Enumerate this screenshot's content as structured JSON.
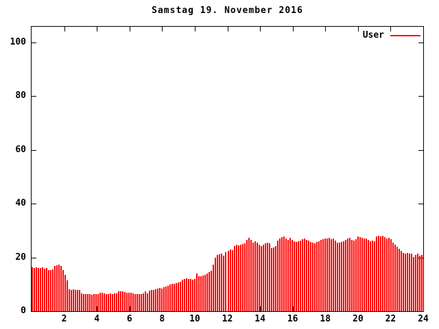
{
  "window": {
    "background": "#ffffff"
  },
  "chart_data": {
    "type": "bar",
    "title": "Samstag 19. November 2016",
    "legend": {
      "label": "User",
      "color": "#ff0000",
      "position": "top-right-inside"
    },
    "xlabel": "",
    "ylabel": "",
    "xlim": [
      0,
      24
    ],
    "ylim": [
      0,
      105.7
    ],
    "x_ticks": [
      2,
      4,
      6,
      8,
      10,
      12,
      14,
      16,
      18,
      20,
      22,
      24
    ],
    "y_ticks": [
      0,
      20,
      40,
      60,
      80,
      100
    ],
    "grid": false,
    "bar_color": "#ff0000",
    "axis_color": "#000000",
    "series": [
      {
        "name": "User",
        "color": "#ff0000",
        "x_start_hour": 0,
        "x_step_hours": 0.1263,
        "values": [
          16.3,
          16.1,
          16.4,
          16.1,
          16.0,
          16.2,
          15.9,
          16.1,
          15.4,
          15.2,
          15.6,
          16.9,
          17.2,
          17.3,
          16.8,
          15.2,
          13.6,
          11.4,
          8.2,
          8.0,
          8.1,
          7.9,
          8.0,
          7.8,
          6.6,
          6.4,
          6.5,
          6.3,
          6.4,
          6.2,
          6.3,
          6.3,
          6.5,
          6.9,
          6.8,
          6.6,
          6.5,
          6.4,
          6.6,
          6.5,
          6.7,
          6.6,
          7.3,
          7.5,
          7.4,
          7.2,
          7.0,
          7.0,
          6.8,
          6.6,
          6.5,
          6.5,
          6.4,
          6.5,
          6.6,
          7.3,
          6.6,
          7.6,
          7.8,
          8.0,
          8.1,
          8.4,
          8.6,
          8.5,
          8.8,
          9.2,
          9.4,
          10.0,
          10.2,
          10.1,
          10.4,
          10.6,
          11.0,
          11.8,
          12.0,
          12.3,
          12.1,
          12.0,
          11.6,
          12.0,
          13.9,
          12.9,
          13.1,
          13.3,
          13.6,
          14.1,
          14.6,
          15.1,
          17.4,
          19.9,
          20.8,
          21.2,
          21.5,
          20.6,
          21.8,
          22.3,
          23.0,
          22.8,
          24.3,
          24.6,
          24.4,
          24.7,
          24.9,
          25.3,
          26.6,
          27.3,
          26.5,
          25.6,
          25.9,
          25.4,
          24.6,
          24.2,
          24.8,
          25.2,
          25.6,
          25.1,
          23.4,
          23.8,
          24.1,
          26.2,
          27.1,
          27.5,
          27.7,
          26.9,
          26.6,
          27.3,
          26.4,
          26.1,
          25.7,
          26.0,
          26.3,
          26.8,
          27.0,
          26.5,
          26.2,
          25.8,
          25.5,
          25.3,
          25.7,
          26.0,
          26.4,
          26.7,
          26.9,
          27.1,
          27.3,
          26.8,
          27.0,
          26.3,
          25.6,
          25.4,
          25.8,
          26.1,
          26.5,
          26.9,
          27.2,
          26.6,
          26.2,
          26.8,
          27.8,
          27.6,
          27.2,
          26.9,
          27.1,
          26.6,
          26.0,
          26.3,
          25.9,
          27.9,
          28.1,
          27.8,
          28.0,
          27.4,
          27.0,
          27.2,
          26.8,
          25.5,
          24.7,
          23.9,
          23.1,
          22.3,
          21.6,
          21.4,
          21.7,
          21.3,
          21.5,
          20.2,
          21.0,
          21.3,
          20.7,
          21.0
        ]
      }
    ]
  }
}
